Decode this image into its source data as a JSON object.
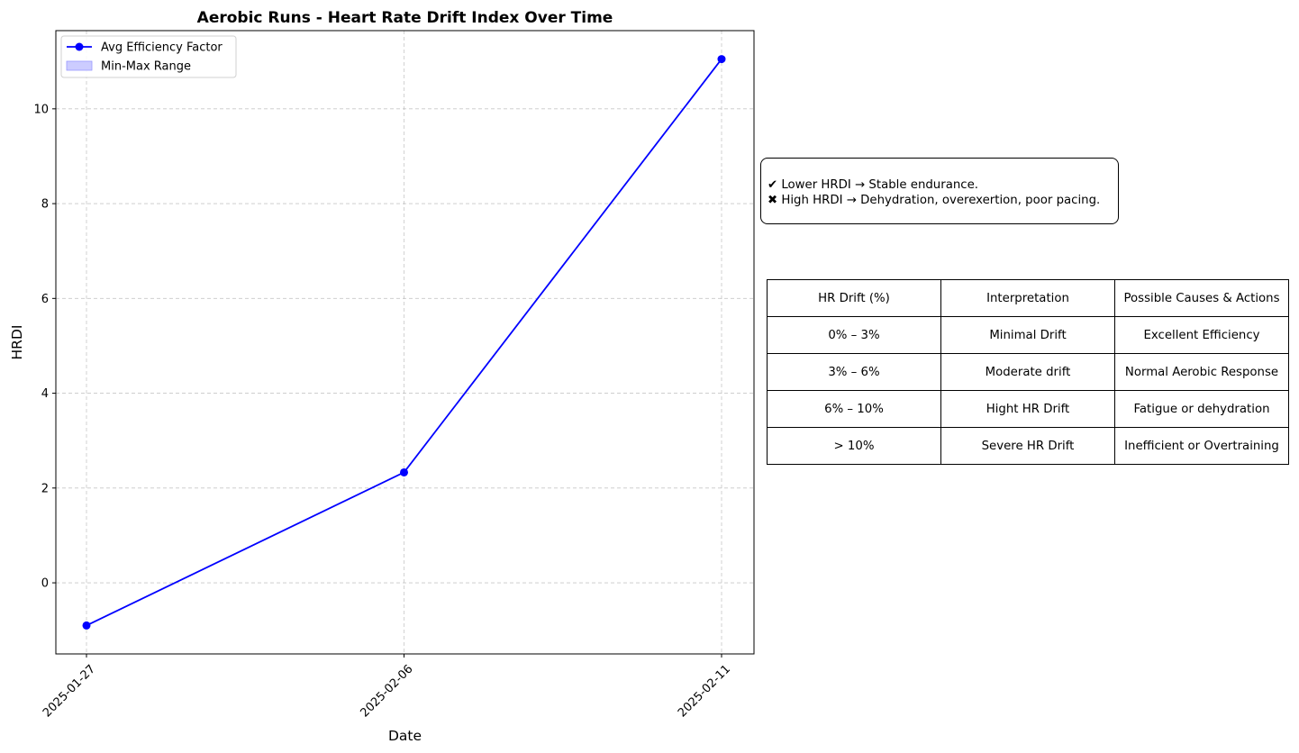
{
  "chart_data": {
    "type": "line",
    "title": "Aerobic Runs - Heart Rate Drift Index Over Time",
    "xlabel": "Date",
    "ylabel": "HRDI",
    "x": [
      "2025-01-27",
      "2025-02-06",
      "2025-02-11"
    ],
    "series": [
      {
        "name": "Avg Efficiency Factor",
        "values": [
          -0.9,
          2.33,
          11.05
        ],
        "color": "#0000ff",
        "marker": "circle"
      }
    ],
    "legend": [
      {
        "label": "Avg Efficiency Factor",
        "kind": "line-marker",
        "color": "#0000ff"
      },
      {
        "label": "Min-Max Range",
        "kind": "fill",
        "color": "#ccccff"
      }
    ],
    "legend_position": "top-left",
    "ylim": [
      -1.5,
      11.65
    ],
    "yticks": [
      0,
      2,
      4,
      6,
      8,
      10
    ],
    "grid": true,
    "grid_style": "dashed"
  },
  "note": {
    "line1": "✔ Lower HRDI → Stable endurance.",
    "line2": "✖ High HRDI → Dehydration, overexertion, poor pacing."
  },
  "table": {
    "headers": [
      "HR Drift (%)",
      "Interpretation",
      "Possible Causes & Actions"
    ],
    "rows": [
      [
        "0% – 3%",
        "Minimal Drift",
        "Excellent Efficiency"
      ],
      [
        "3% – 6%",
        "Moderate drift",
        "Normal Aerobic Response"
      ],
      [
        "6% – 10%",
        "Hight HR Drift",
        "Fatigue or dehydration"
      ],
      [
        "> 10%",
        "Severe HR Drift",
        "Inefficient or Overtraining"
      ]
    ]
  }
}
